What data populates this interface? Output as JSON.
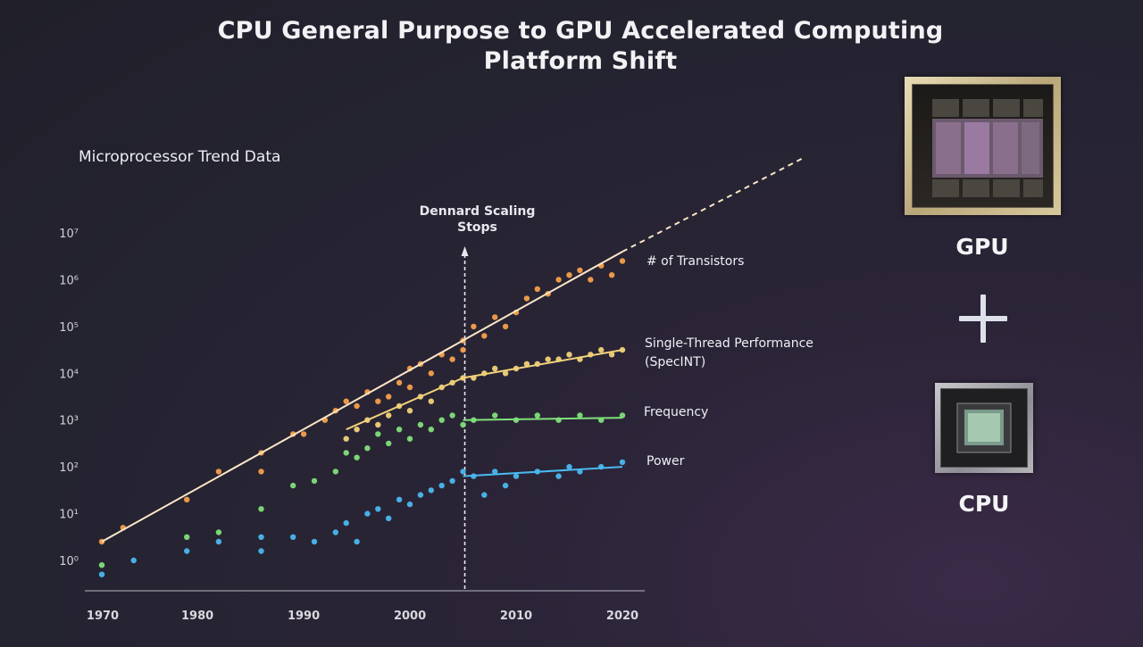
{
  "slide": {
    "title_line1": "CPU General Purpose to GPU Accelerated Computing",
    "title_line2": "Platform Shift",
    "gpu_label": "GPU",
    "cpu_label": "CPU",
    "plus_icon": "plus-icon"
  },
  "colors": {
    "transistors": "#f5a04a",
    "performance": "#f0d27a",
    "frequency": "#7fe07a",
    "power": "#4ab8f0",
    "trend_line": "#fbe7c8",
    "axis": "#9a9aa6",
    "text": "#e8e8ee"
  },
  "chart_data": {
    "type": "scatter",
    "title": "Microprocessor Trend Data",
    "x_axis": {
      "ticks": [
        1970,
        1980,
        1990,
        2000,
        2010,
        2020
      ],
      "range": [
        1970,
        2022
      ]
    },
    "y_axis": {
      "scale": "log10",
      "range_exp": [
        -0.3,
        7.3
      ],
      "tick_labels": [
        "10⁰",
        "10¹",
        "10²",
        "10³",
        "10⁴",
        "10⁵",
        "10⁶",
        "10⁷"
      ],
      "tick_exps": [
        0,
        1,
        2,
        3,
        4,
        5,
        6,
        7
      ]
    },
    "annotation": {
      "label_line1": "Dennard Scaling",
      "label_line2": "Stops",
      "year": 2005
    },
    "series": [
      {
        "name": "# of Transistors",
        "color_key": "transistors",
        "trend": {
          "x": [
            1971,
            2020
          ],
          "log_y": [
            0.4,
            6.6
          ],
          "extend_to": {
            "x": 2037,
            "log_y": 8.6
          }
        },
        "points": [
          [
            1971,
            0.4
          ],
          [
            1973,
            0.7
          ],
          [
            1979,
            1.3
          ],
          [
            1982,
            1.9
          ],
          [
            1986,
            2.3
          ],
          [
            1986,
            1.9
          ],
          [
            1989,
            2.7
          ],
          [
            1990,
            2.7
          ],
          [
            1992,
            3.0
          ],
          [
            1993,
            3.2
          ],
          [
            1994,
            3.4
          ],
          [
            1995,
            3.3
          ],
          [
            1996,
            3.6
          ],
          [
            1997,
            3.4
          ],
          [
            1998,
            3.5
          ],
          [
            1999,
            3.8
          ],
          [
            2000,
            3.7
          ],
          [
            2000,
            4.1
          ],
          [
            2001,
            4.2
          ],
          [
            2002,
            4.0
          ],
          [
            2003,
            4.4
          ],
          [
            2004,
            4.3
          ],
          [
            2005,
            4.7
          ],
          [
            2005,
            4.5
          ],
          [
            2006,
            5.0
          ],
          [
            2007,
            4.8
          ],
          [
            2008,
            5.2
          ],
          [
            2009,
            5.0
          ],
          [
            2010,
            5.3
          ],
          [
            2011,
            5.6
          ],
          [
            2012,
            5.8
          ],
          [
            2013,
            5.7
          ],
          [
            2014,
            6.0
          ],
          [
            2015,
            6.1
          ],
          [
            2016,
            6.2
          ],
          [
            2017,
            6.0
          ],
          [
            2018,
            6.3
          ],
          [
            2019,
            6.1
          ],
          [
            2020,
            6.4
          ]
        ]
      },
      {
        "name": "Single-Thread Performance",
        "name_line2": "(SpecINT)",
        "color_key": "performance",
        "trend": {
          "x": [
            1994,
            2005,
            2020
          ],
          "log_y": [
            2.8,
            3.9,
            4.5
          ]
        },
        "points": [
          [
            1994,
            2.6
          ],
          [
            1995,
            2.8
          ],
          [
            1996,
            3.0
          ],
          [
            1997,
            2.9
          ],
          [
            1998,
            3.1
          ],
          [
            1999,
            3.3
          ],
          [
            2000,
            3.2
          ],
          [
            2001,
            3.5
          ],
          [
            2002,
            3.4
          ],
          [
            2003,
            3.7
          ],
          [
            2004,
            3.8
          ],
          [
            2005,
            3.9
          ],
          [
            2006,
            3.9
          ],
          [
            2007,
            4.0
          ],
          [
            2008,
            4.1
          ],
          [
            2009,
            4.0
          ],
          [
            2010,
            4.1
          ],
          [
            2011,
            4.2
          ],
          [
            2012,
            4.2
          ],
          [
            2013,
            4.3
          ],
          [
            2014,
            4.3
          ],
          [
            2015,
            4.4
          ],
          [
            2016,
            4.3
          ],
          [
            2017,
            4.4
          ],
          [
            2018,
            4.5
          ],
          [
            2019,
            4.4
          ],
          [
            2020,
            4.5
          ]
        ]
      },
      {
        "name": "Frequency",
        "color_key": "frequency",
        "trend": {
          "x": [
            2005,
            2020
          ],
          "log_y": [
            3.0,
            3.05
          ]
        },
        "points": [
          [
            1971,
            -0.1
          ],
          [
            1979,
            0.5
          ],
          [
            1982,
            0.6
          ],
          [
            1986,
            1.1
          ],
          [
            1989,
            1.6
          ],
          [
            1991,
            1.7
          ],
          [
            1993,
            1.9
          ],
          [
            1994,
            2.3
          ],
          [
            1995,
            2.2
          ],
          [
            1996,
            2.4
          ],
          [
            1997,
            2.7
          ],
          [
            1998,
            2.5
          ],
          [
            1999,
            2.8
          ],
          [
            2000,
            2.6
          ],
          [
            2001,
            2.9
          ],
          [
            2002,
            2.8
          ],
          [
            2003,
            3.0
          ],
          [
            2004,
            3.1
          ],
          [
            2005,
            2.9
          ],
          [
            2006,
            3.0
          ],
          [
            2008,
            3.1
          ],
          [
            2010,
            3.0
          ],
          [
            2012,
            3.1
          ],
          [
            2014,
            3.0
          ],
          [
            2016,
            3.1
          ],
          [
            2018,
            3.0
          ],
          [
            2020,
            3.1
          ]
        ]
      },
      {
        "name": "Power",
        "color_key": "power",
        "trend": {
          "x": [
            2005,
            2020
          ],
          "log_y": [
            1.8,
            2.0
          ]
        },
        "points": [
          [
            1971,
            -0.3
          ],
          [
            1974,
            0.0
          ],
          [
            1979,
            0.2
          ],
          [
            1982,
            0.4
          ],
          [
            1986,
            0.2
          ],
          [
            1986,
            0.5
          ],
          [
            1989,
            0.5
          ],
          [
            1991,
            0.4
          ],
          [
            1993,
            0.6
          ],
          [
            1994,
            0.8
          ],
          [
            1995,
            0.4
          ],
          [
            1996,
            1.0
          ],
          [
            1997,
            1.1
          ],
          [
            1998,
            0.9
          ],
          [
            1999,
            1.3
          ],
          [
            2000,
            1.2
          ],
          [
            2001,
            1.4
          ],
          [
            2002,
            1.5
          ],
          [
            2003,
            1.6
          ],
          [
            2004,
            1.7
          ],
          [
            2005,
            1.9
          ],
          [
            2006,
            1.8
          ],
          [
            2007,
            1.4
          ],
          [
            2008,
            1.9
          ],
          [
            2009,
            1.6
          ],
          [
            2010,
            1.8
          ],
          [
            2012,
            1.9
          ],
          [
            2014,
            1.8
          ],
          [
            2015,
            2.0
          ],
          [
            2016,
            1.9
          ],
          [
            2018,
            2.0
          ],
          [
            2020,
            2.1
          ]
        ]
      }
    ]
  }
}
